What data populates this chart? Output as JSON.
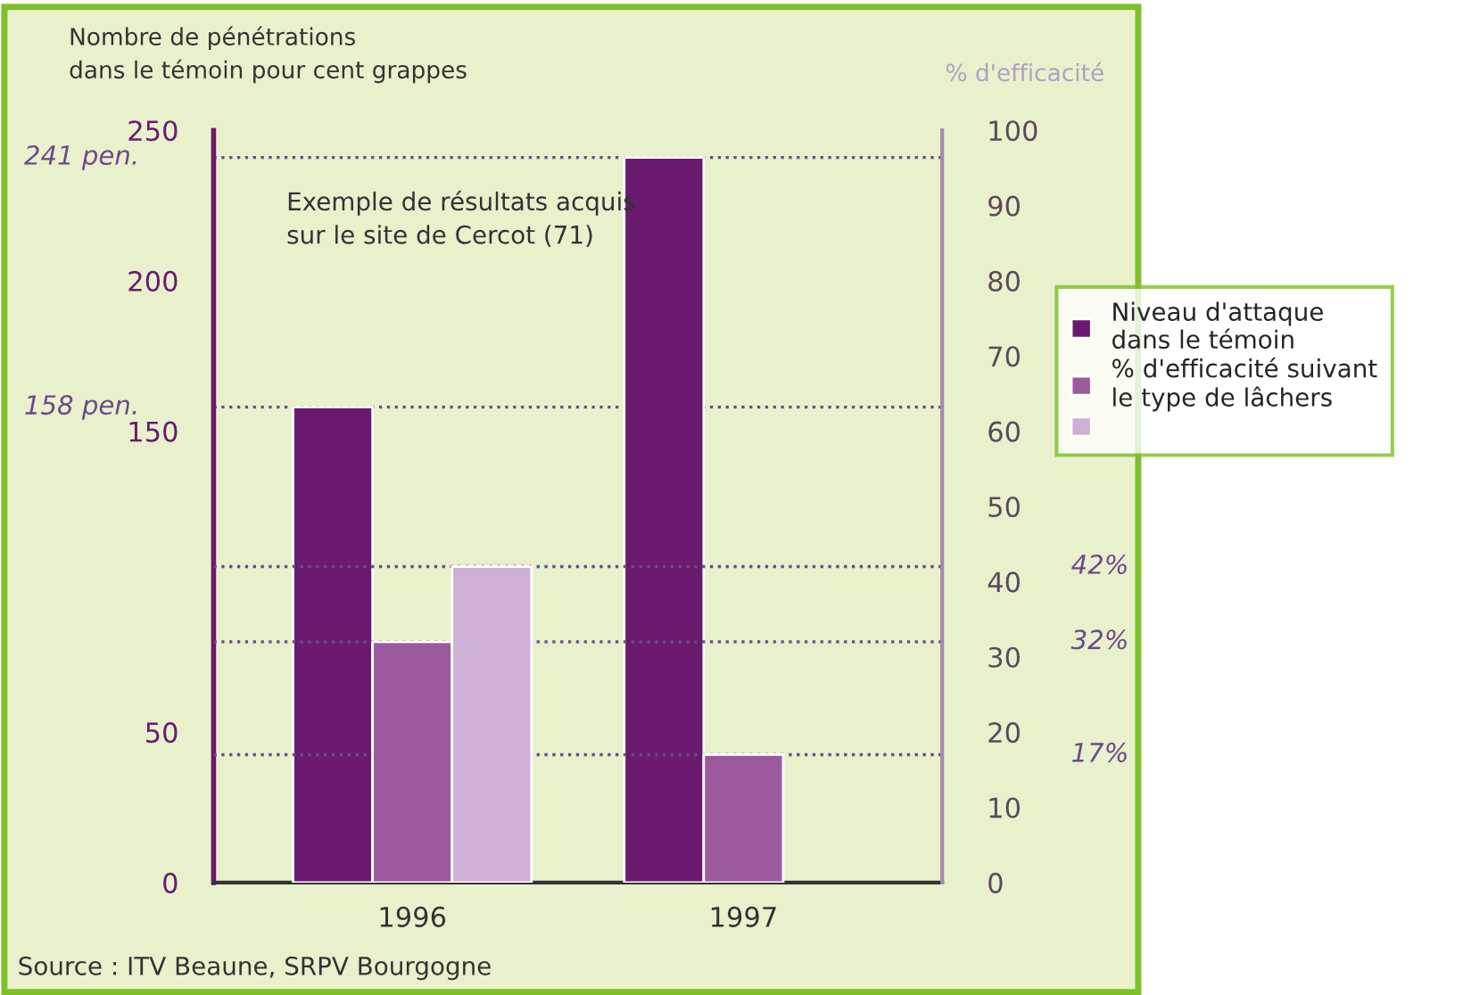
{
  "chart_data": {
    "type": "bar",
    "ylabel": "Nombre de pénétrations\ndans le témoin pour cent grappes",
    "y2label": "% d'efficacité",
    "categories": [
      "1996",
      "1997"
    ],
    "series": [
      {
        "name": "Niveau d'attaque\ndans le témoin",
        "color": "#6a1a6e",
        "values": [
          158,
          241
        ]
      },
      {
        "name": "% d'efficacité suivant\nle type de lâchers",
        "color": "#9a5a9c",
        "values": [
          32,
          17
        ],
        "axis": "y2"
      },
      {
        "color": "#cdb0d6",
        "values": [
          42,
          null
        ],
        "axis": "y2"
      }
    ],
    "ylim": [
      0,
      250
    ],
    "yticks": [
      0,
      50,
      150,
      200,
      250
    ],
    "y2lim": [
      0,
      100
    ],
    "y2ticks": [
      0,
      10,
      20,
      30,
      40,
      50,
      60,
      70,
      80,
      90,
      100
    ],
    "ref_lines": [
      {
        "axis": "y",
        "value": 241,
        "label": "241 pen.",
        "line_style": "dotted"
      },
      {
        "axis": "y",
        "value": 158,
        "label": "158 pen.",
        "line_style": "dotted"
      },
      {
        "axis": "y2",
        "value": 42,
        "label": "42%",
        "line_style": "dotted"
      },
      {
        "axis": "y2",
        "value": 32,
        "label": "32%",
        "line_style": "dotted"
      },
      {
        "axis": "y2",
        "value": 17,
        "label": "17%",
        "line_style": "dotted"
      }
    ],
    "annotations": [
      "Exemple de résultats acquis\nsur le site de Cercot (71)",
      "Source : ITV Beaune, SRPV Bourgogne"
    ],
    "legend": "right",
    "grid": false
  }
}
